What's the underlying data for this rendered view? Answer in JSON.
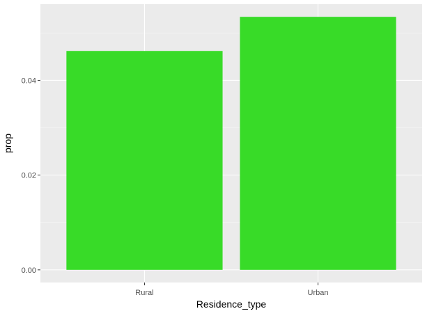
{
  "chart_data": {
    "type": "bar",
    "categories": [
      "Rural",
      "Urban"
    ],
    "values": [
      0.0462,
      0.0534
    ],
    "xlabel": "Residence_type",
    "ylabel": "prop",
    "ylim": [
      -0.00267,
      0.05607
    ],
    "yticks": [
      0.0,
      0.02,
      0.04
    ],
    "ytick_labels": [
      "0.00",
      "0.02",
      "0.04"
    ],
    "grid": true,
    "legend": "none",
    "colors": {
      "bar": "#38DB28",
      "panel": "#EBEBEB",
      "grid_major": "#FFFFFF",
      "grid_minor": "#F5F5F5"
    }
  }
}
